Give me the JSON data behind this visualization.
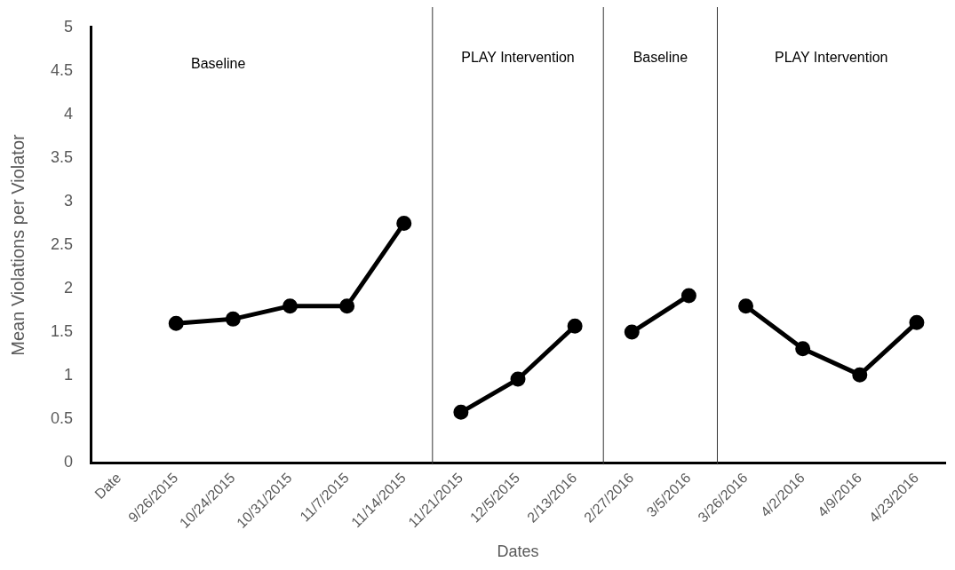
{
  "chart_data": {
    "type": "line",
    "xlabel": "Dates",
    "ylabel": "Mean Violations per Violator",
    "categories": [
      "Date",
      "9/26/2015",
      "10/24/2015",
      "10/31/2015",
      "11/7/2015",
      "11/14/2015",
      "11/21/2015",
      "12/5/2015",
      "2/13/2016",
      "2/27/2016",
      "3/5/2016",
      "3/26/2016",
      "4/2/2016",
      "4/9/2016",
      "4/23/2016"
    ],
    "series": [
      {
        "color": "#000000",
        "values": [
          null,
          1.6,
          1.65,
          1.8,
          1.8,
          2.75,
          null,
          null,
          null,
          null,
          null,
          null,
          null,
          null,
          null
        ]
      },
      {
        "color": "#000000",
        "values": [
          null,
          null,
          null,
          null,
          null,
          null,
          0.58,
          0.96,
          1.57,
          null,
          null,
          null,
          null,
          null,
          null
        ]
      },
      {
        "color": "#000000",
        "values": [
          null,
          null,
          null,
          null,
          null,
          null,
          null,
          null,
          null,
          1.5,
          1.92,
          null,
          null,
          null,
          null
        ]
      },
      {
        "color": "#000000",
        "values": [
          null,
          null,
          null,
          null,
          null,
          null,
          null,
          null,
          null,
          null,
          null,
          1.8,
          1.31,
          1.01,
          1.61
        ]
      }
    ],
    "ylim": [
      0,
      5
    ],
    "yticks": [
      0,
      0.5,
      1,
      1.5,
      2,
      2.5,
      3,
      3.5,
      4,
      4.5,
      5
    ],
    "annotations": [
      "Baseline",
      "PLAY Intervention",
      "Baseline",
      "PLAY Intervention"
    ],
    "grid": false,
    "legend": false,
    "marker": "circle",
    "line_style": "solid"
  }
}
